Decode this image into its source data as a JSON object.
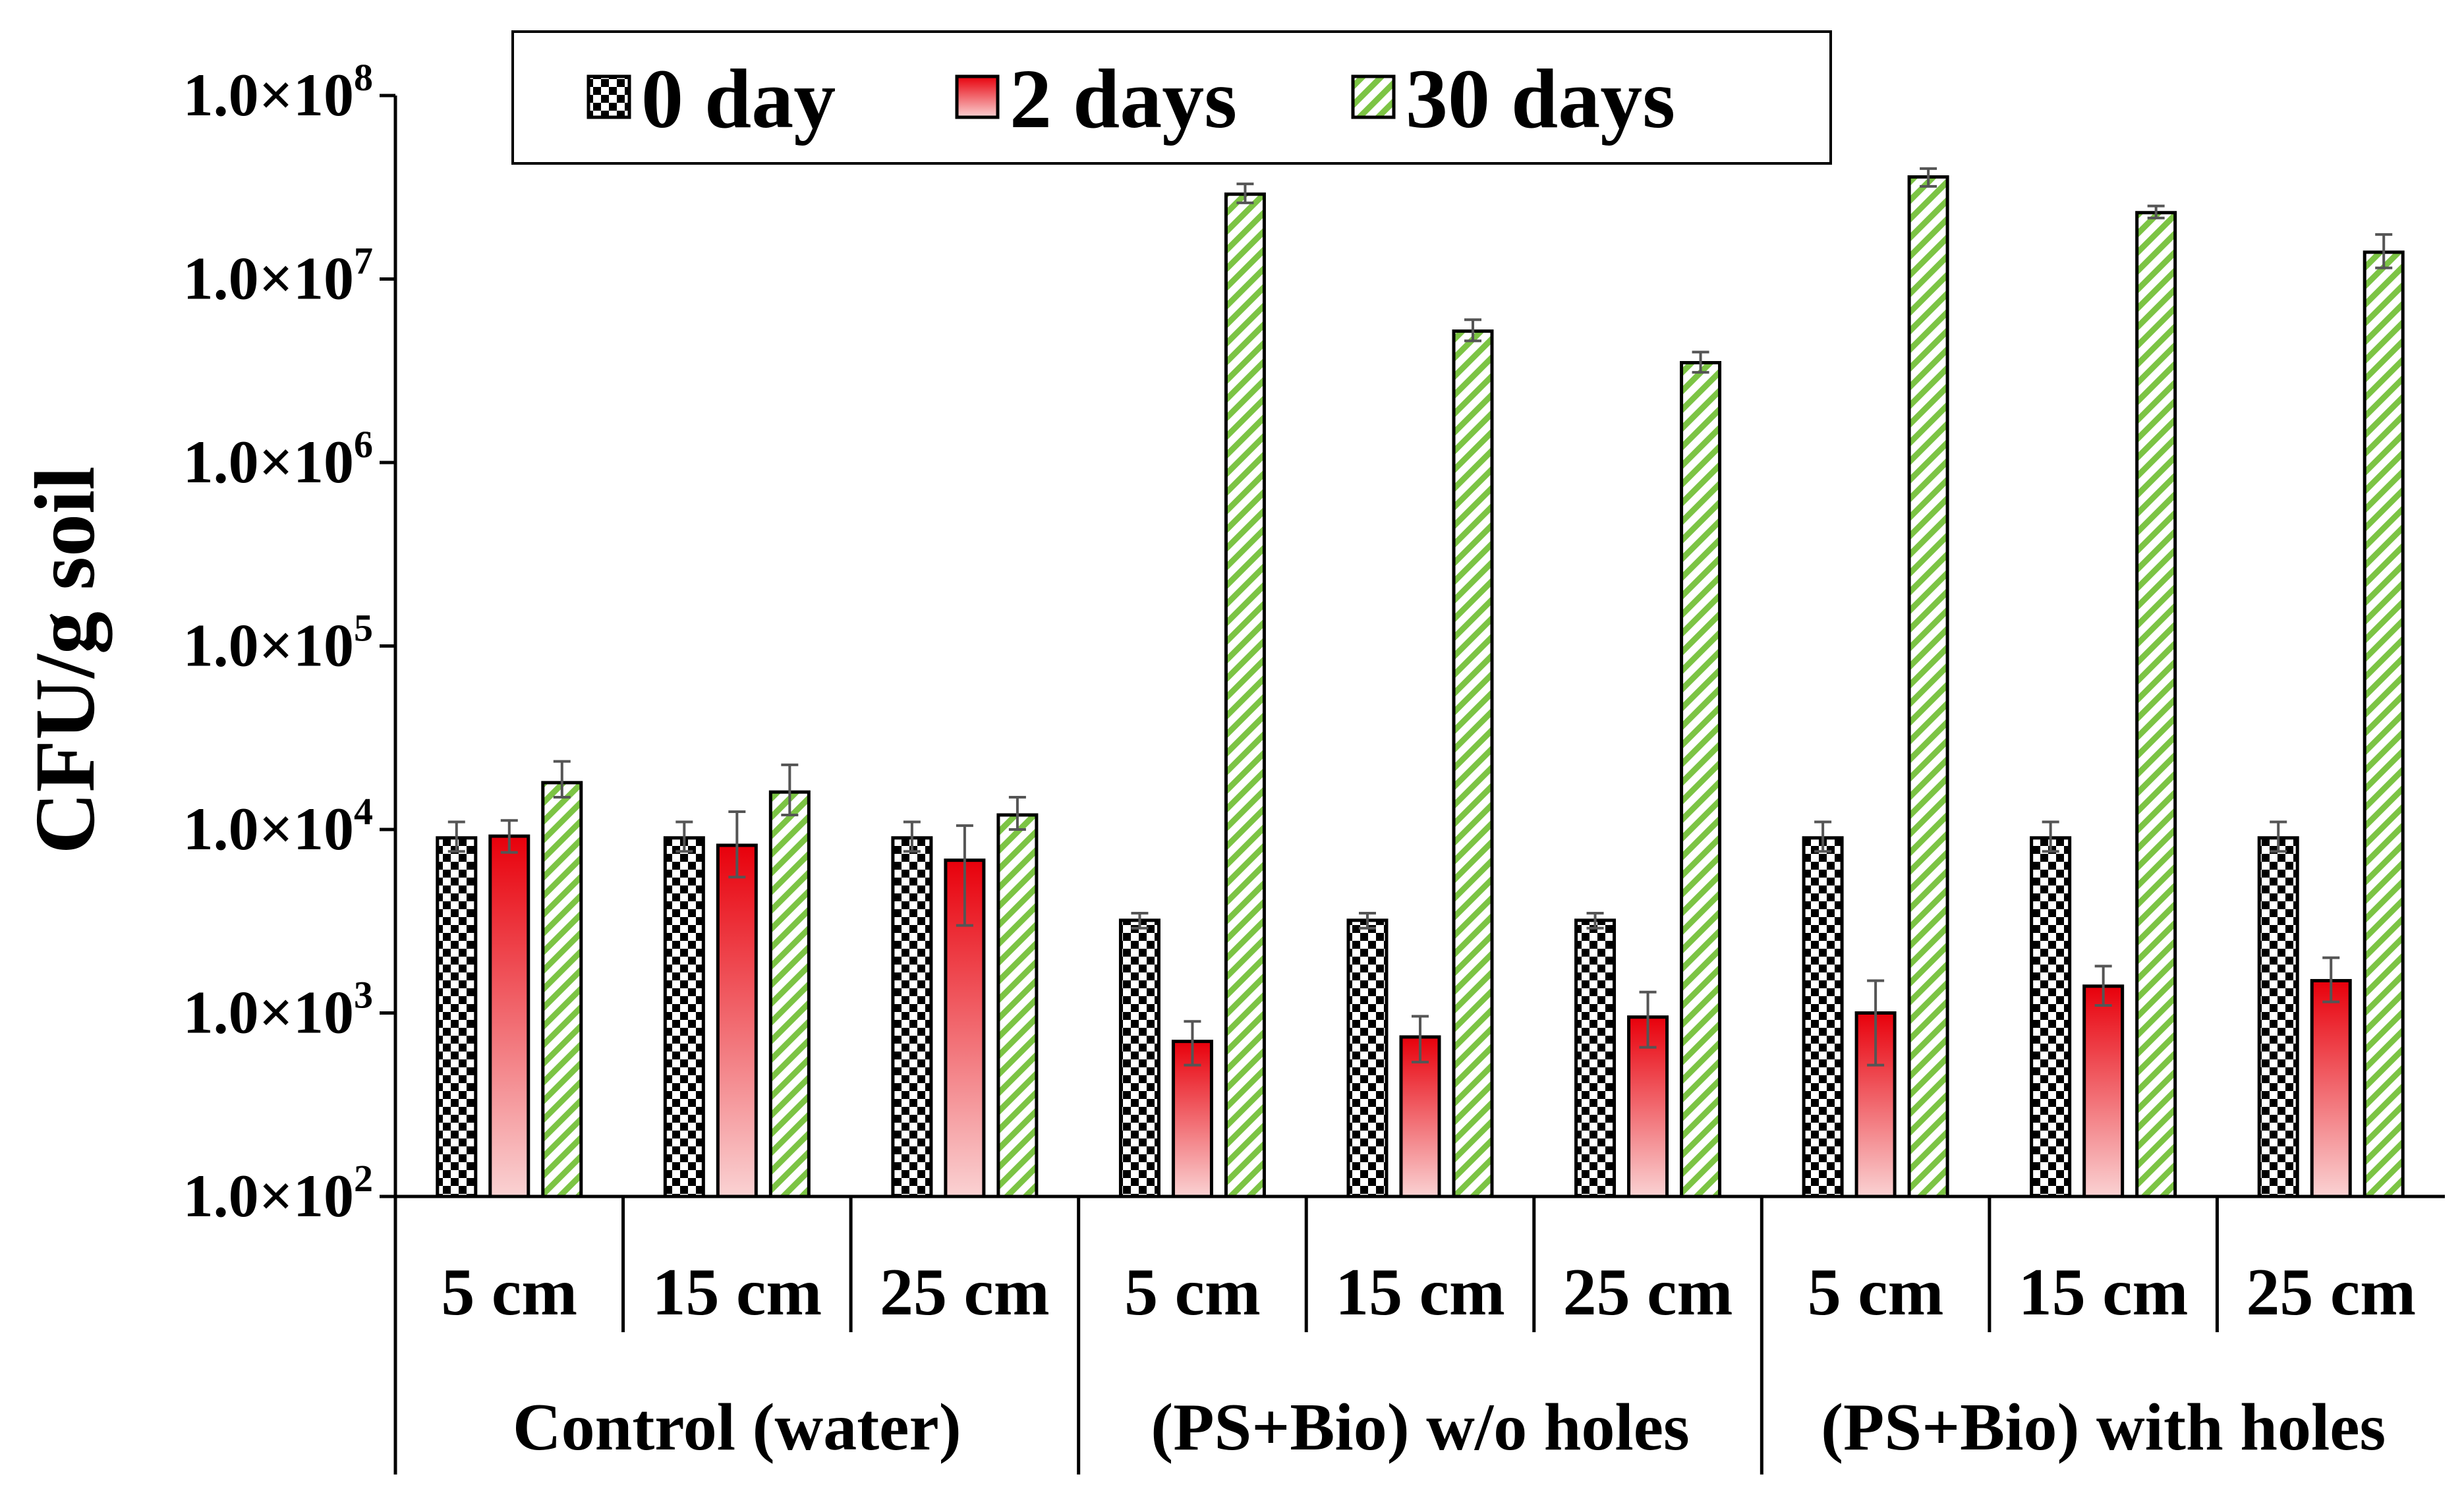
{
  "chart_data": {
    "type": "bar",
    "title": "",
    "ylabel": "CFU/g soil",
    "yscale": "log",
    "ylim": [
      100,
      100000000
    ],
    "yticks": [
      {
        "value": 100,
        "base": "1.0×10",
        "exp": "2"
      },
      {
        "value": 1000,
        "base": "1.0×10",
        "exp": "3"
      },
      {
        "value": 10000,
        "base": "1.0×10",
        "exp": "4"
      },
      {
        "value": 100000,
        "base": "1.0×10",
        "exp": "5"
      },
      {
        "value": 1000000,
        "base": "1.0×10",
        "exp": "6"
      },
      {
        "value": 10000000,
        "base": "1.0×10",
        "exp": "7"
      },
      {
        "value": 100000000,
        "base": "1.0×10",
        "exp": "8"
      }
    ],
    "groups": [
      "Control (water)",
      "(PS+Bio) w/o holes",
      "(PS+Bio) with holes"
    ],
    "categories": [
      "5 cm",
      "15 cm",
      "25 cm",
      "5 cm",
      "15 cm",
      "25 cm",
      "5 cm",
      "15 cm",
      "25 cm"
    ],
    "legend_position": "top-center",
    "series": [
      {
        "name": "0 day",
        "pattern": "checker",
        "color": "#000000",
        "values": [
          9000,
          9000,
          9000,
          3200,
          3200,
          3200,
          9000,
          9000,
          9000
        ],
        "err_low": [
          7600,
          7600,
          7600,
          2900,
          2900,
          2900,
          7600,
          7600,
          7600
        ],
        "err_high": [
          11000,
          11000,
          11000,
          3500,
          3500,
          3500,
          11000,
          11000,
          11000
        ]
      },
      {
        "name": "2 days",
        "pattern": "red-gradient",
        "color": "#e8000b",
        "values": [
          9200,
          8200,
          6800,
          700,
          740,
          950,
          1000,
          1400,
          1500
        ],
        "err_low": [
          7500,
          5500,
          3000,
          520,
          540,
          650,
          520,
          1100,
          1150
        ],
        "err_high": [
          11200,
          12500,
          10500,
          900,
          960,
          1300,
          1500,
          1800,
          2000
        ]
      },
      {
        "name": "30 days",
        "pattern": "green-stripe",
        "color": "#7cc444",
        "values": [
          18000,
          16000,
          12000,
          29000000,
          5200000,
          3500000,
          36000000,
          23000000,
          14000000
        ],
        "err_low": [
          15000,
          12000,
          10000,
          26000000,
          4600000,
          3100000,
          32000000,
          21500000,
          11500000
        ],
        "err_high": [
          23500,
          22500,
          15000,
          33000000,
          6000000,
          4000000,
          40000000,
          25000000,
          17500000
        ]
      }
    ]
  }
}
